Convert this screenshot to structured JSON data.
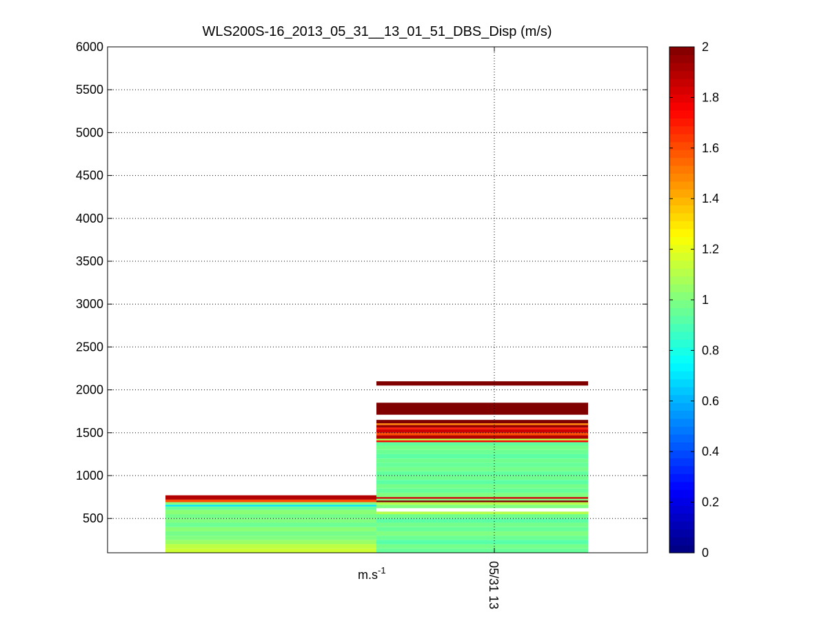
{
  "chart_data": {
    "type": "heatmap",
    "title": "WLS200S-16_2013_05_31__13_01_51_DBS_Disp (m/s)",
    "colorbar_unit_label": {
      "base": "m.s",
      "exponent": "-1"
    },
    "x_tick_label": "05/31 13",
    "ylim": [
      100,
      6000
    ],
    "y_ticks": [
      500,
      1000,
      1500,
      2000,
      2500,
      3000,
      3500,
      4000,
      4500,
      5000,
      5500,
      6000
    ],
    "color_range": [
      0,
      2
    ],
    "colorbar_ticks": [
      0,
      0.2,
      0.4,
      0.6,
      0.8,
      1,
      1.2,
      1.4,
      1.6,
      1.8,
      2
    ],
    "colormap": "jet",
    "grid": true,
    "columns": [
      {
        "time_index": 0,
        "cells": [
          {
            "y0": 100,
            "y1": 150,
            "value": 1.15
          },
          {
            "y0": 150,
            "y1": 200,
            "value": 1.12
          },
          {
            "y0": 200,
            "y1": 250,
            "value": 1.05
          },
          {
            "y0": 250,
            "y1": 300,
            "value": 1.0
          },
          {
            "y0": 300,
            "y1": 350,
            "value": 0.98
          },
          {
            "y0": 350,
            "y1": 400,
            "value": 1.02
          },
          {
            "y0": 400,
            "y1": 450,
            "value": 0.96
          },
          {
            "y0": 450,
            "y1": 500,
            "value": 1.0
          },
          {
            "y0": 500,
            "y1": 550,
            "value": 0.98
          },
          {
            "y0": 550,
            "y1": 600,
            "value": 1.02
          },
          {
            "y0": 600,
            "y1": 640,
            "value": 0.95
          },
          {
            "y0": 640,
            "y1": 660,
            "value": 0.7
          },
          {
            "y0": 660,
            "y1": 690,
            "value": 1.0
          },
          {
            "y0": 690,
            "y1": 720,
            "value": 1.6
          },
          {
            "y0": 720,
            "y1": 770,
            "value": 1.9
          }
        ]
      },
      {
        "time_index": 1,
        "cells": [
          {
            "y0": 100,
            "y1": 150,
            "value": 0.95
          },
          {
            "y0": 150,
            "y1": 200,
            "value": 0.98
          },
          {
            "y0": 200,
            "y1": 250,
            "value": 0.92
          },
          {
            "y0": 250,
            "y1": 300,
            "value": 0.96
          },
          {
            "y0": 300,
            "y1": 350,
            "value": 1.0
          },
          {
            "y0": 350,
            "y1": 400,
            "value": 0.95
          },
          {
            "y0": 400,
            "y1": 450,
            "value": 0.98
          },
          {
            "y0": 450,
            "y1": 500,
            "value": 0.93
          },
          {
            "y0": 500,
            "y1": 550,
            "value": 0.97
          },
          {
            "y0": 550,
            "y1": 580,
            "value": 1.1
          },
          {
            "y0": 620,
            "y1": 660,
            "value": 1.0
          },
          {
            "y0": 660,
            "y1": 690,
            "value": 1.1
          },
          {
            "y0": 690,
            "y1": 710,
            "value": 2.0
          },
          {
            "y0": 710,
            "y1": 730,
            "value": 1.0
          },
          {
            "y0": 730,
            "y1": 750,
            "value": 1.85
          },
          {
            "y0": 750,
            "y1": 800,
            "value": 1.0
          },
          {
            "y0": 800,
            "y1": 850,
            "value": 0.95
          },
          {
            "y0": 850,
            "y1": 900,
            "value": 0.98
          },
          {
            "y0": 900,
            "y1": 950,
            "value": 0.93
          },
          {
            "y0": 950,
            "y1": 1000,
            "value": 0.97
          },
          {
            "y0": 1000,
            "y1": 1050,
            "value": 0.94
          },
          {
            "y0": 1050,
            "y1": 1100,
            "value": 0.98
          },
          {
            "y0": 1100,
            "y1": 1150,
            "value": 0.95
          },
          {
            "y0": 1150,
            "y1": 1200,
            "value": 0.97
          },
          {
            "y0": 1200,
            "y1": 1250,
            "value": 0.93
          },
          {
            "y0": 1250,
            "y1": 1300,
            "value": 0.96
          },
          {
            "y0": 1300,
            "y1": 1350,
            "value": 0.98
          },
          {
            "y0": 1350,
            "y1": 1390,
            "value": 0.94
          },
          {
            "y0": 1390,
            "y1": 1410,
            "value": 1.75
          },
          {
            "y0": 1410,
            "y1": 1430,
            "value": 1.1
          },
          {
            "y0": 1430,
            "y1": 1470,
            "value": 1.9
          },
          {
            "y0": 1470,
            "y1": 1500,
            "value": 1.6
          },
          {
            "y0": 1500,
            "y1": 1540,
            "value": 1.85
          },
          {
            "y0": 1540,
            "y1": 1560,
            "value": 1.7
          },
          {
            "y0": 1560,
            "y1": 1590,
            "value": 1.95
          },
          {
            "y0": 1590,
            "y1": 1610,
            "value": 1.5
          },
          {
            "y0": 1610,
            "y1": 1650,
            "value": 2.0
          },
          {
            "y0": 1710,
            "y1": 1850,
            "value": 2.0
          },
          {
            "y0": 2050,
            "y1": 2100,
            "value": 2.0
          }
        ]
      }
    ]
  }
}
